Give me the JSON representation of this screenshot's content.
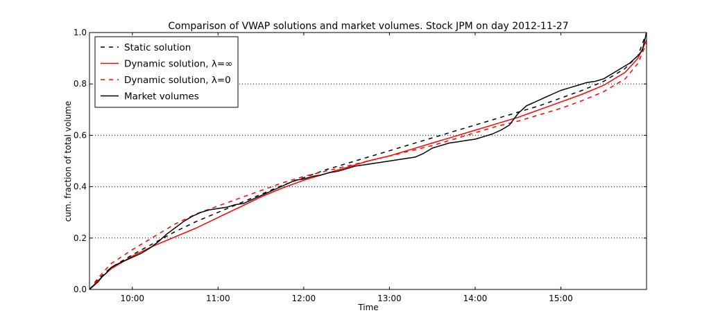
{
  "chart_data": {
    "type": "line",
    "title": "Comparison of VWAP solutions and market volumes. Stock JPM on day 2012-11-27",
    "xlabel": "Time",
    "ylabel": "cum. fraction of total volume",
    "x_unit": "hours since 00:00",
    "xlim": [
      9.5,
      16.0
    ],
    "ylim": [
      0.0,
      1.0
    ],
    "x_ticks": [
      10,
      11,
      12,
      13,
      14,
      15
    ],
    "x_tick_labels": [
      "10:00",
      "11:00",
      "12:00",
      "13:00",
      "14:00",
      "15:00"
    ],
    "y_ticks": [
      0.0,
      0.2,
      0.4,
      0.6,
      0.8,
      1.0
    ],
    "y_tick_labels": [
      "0.0",
      "0.2",
      "0.4",
      "0.6",
      "0.8",
      "1.0"
    ],
    "grid": "horizontal dotted",
    "legend_position": "top-left",
    "series": [
      {
        "name": "Static solution",
        "color": "#000000",
        "style": "dashed",
        "x": [
          9.5,
          9.6,
          9.75,
          10.0,
          10.25,
          10.5,
          10.75,
          11.0,
          11.25,
          11.5,
          11.75,
          12.0,
          12.25,
          12.5,
          12.75,
          13.0,
          13.25,
          13.5,
          13.75,
          14.0,
          14.25,
          14.5,
          14.75,
          15.0,
          15.25,
          15.5,
          15.75,
          15.9,
          16.0
        ],
        "y": [
          0.0,
          0.04,
          0.085,
          0.135,
          0.18,
          0.225,
          0.265,
          0.3,
          0.335,
          0.37,
          0.405,
          0.435,
          0.465,
          0.49,
          0.515,
          0.54,
          0.565,
          0.59,
          0.615,
          0.64,
          0.665,
          0.69,
          0.715,
          0.745,
          0.775,
          0.81,
          0.86,
          0.91,
          1.0
        ]
      },
      {
        "name": "Dynamic solution, λ=∞",
        "color": "#ff0000",
        "style": "solid",
        "x": [
          9.5,
          9.6,
          9.75,
          10.0,
          10.25,
          10.5,
          10.75,
          11.0,
          11.25,
          11.5,
          11.75,
          12.0,
          12.25,
          12.5,
          12.75,
          13.0,
          13.25,
          13.5,
          13.75,
          14.0,
          14.25,
          14.5,
          14.75,
          15.0,
          15.25,
          15.5,
          15.75,
          15.9,
          16.0
        ],
        "y": [
          0.0,
          0.035,
          0.08,
          0.13,
          0.17,
          0.205,
          0.24,
          0.28,
          0.32,
          0.36,
          0.395,
          0.425,
          0.45,
          0.475,
          0.5,
          0.52,
          0.545,
          0.57,
          0.595,
          0.62,
          0.645,
          0.67,
          0.7,
          0.73,
          0.76,
          0.795,
          0.845,
          0.9,
          0.97
        ]
      },
      {
        "name": "Dynamic solution, λ=0",
        "color": "#ff0000",
        "style": "dashed",
        "x": [
          9.5,
          9.6,
          9.75,
          10.0,
          10.25,
          10.5,
          10.75,
          11.0,
          11.25,
          11.5,
          11.75,
          12.0,
          12.25,
          12.5,
          12.75,
          13.0,
          13.25,
          13.5,
          13.75,
          14.0,
          14.25,
          14.5,
          14.75,
          15.0,
          15.25,
          15.5,
          15.75,
          15.9,
          16.0
        ],
        "y": [
          0.0,
          0.045,
          0.1,
          0.155,
          0.205,
          0.255,
          0.295,
          0.325,
          0.355,
          0.385,
          0.415,
          0.44,
          0.46,
          0.48,
          0.5,
          0.52,
          0.54,
          0.56,
          0.585,
          0.61,
          0.635,
          0.655,
          0.68,
          0.705,
          0.735,
          0.77,
          0.82,
          0.88,
          0.96
        ]
      },
      {
        "name": "Market volumes",
        "color": "#000000",
        "style": "solid",
        "x": [
          9.5,
          9.55,
          9.6,
          9.65,
          9.7,
          9.75,
          9.8,
          9.9,
          10.0,
          10.1,
          10.2,
          10.3,
          10.4,
          10.5,
          10.6,
          10.7,
          10.8,
          10.9,
          11.0,
          11.1,
          11.2,
          11.3,
          11.4,
          11.5,
          11.6,
          11.7,
          11.8,
          11.9,
          12.0,
          12.1,
          12.2,
          12.3,
          12.4,
          12.5,
          12.6,
          12.7,
          12.8,
          12.9,
          13.0,
          13.1,
          13.2,
          13.3,
          13.4,
          13.5,
          13.6,
          13.7,
          13.8,
          13.9,
          14.0,
          14.1,
          14.2,
          14.3,
          14.4,
          14.5,
          14.6,
          14.7,
          14.8,
          14.9,
          15.0,
          15.1,
          15.2,
          15.3,
          15.4,
          15.5,
          15.6,
          15.7,
          15.8,
          15.9,
          15.95,
          16.0
        ],
        "y": [
          0.0,
          0.015,
          0.03,
          0.05,
          0.065,
          0.085,
          0.095,
          0.11,
          0.125,
          0.14,
          0.16,
          0.185,
          0.215,
          0.24,
          0.265,
          0.285,
          0.3,
          0.31,
          0.315,
          0.32,
          0.33,
          0.335,
          0.35,
          0.365,
          0.38,
          0.395,
          0.41,
          0.425,
          0.43,
          0.44,
          0.445,
          0.455,
          0.46,
          0.47,
          0.48,
          0.485,
          0.49,
          0.495,
          0.5,
          0.505,
          0.51,
          0.515,
          0.53,
          0.55,
          0.56,
          0.57,
          0.575,
          0.58,
          0.585,
          0.595,
          0.605,
          0.62,
          0.64,
          0.685,
          0.715,
          0.73,
          0.745,
          0.76,
          0.775,
          0.785,
          0.795,
          0.805,
          0.81,
          0.82,
          0.84,
          0.86,
          0.88,
          0.91,
          0.93,
          1.0
        ]
      }
    ]
  }
}
